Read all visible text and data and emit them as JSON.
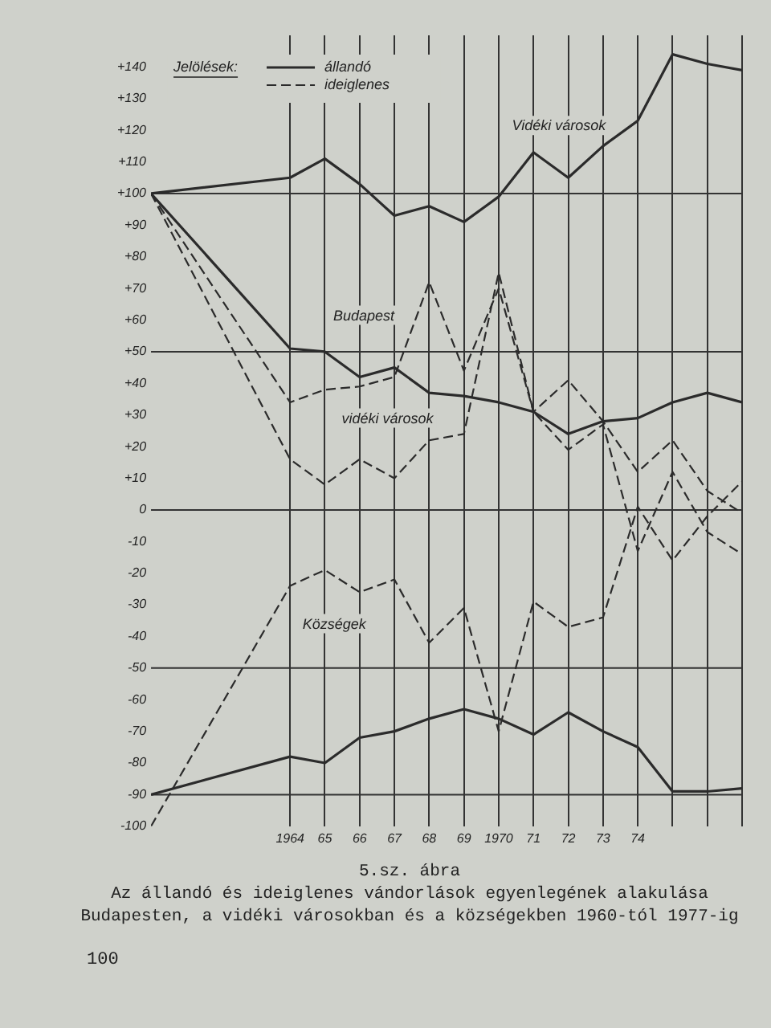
{
  "chart_data": {
    "type": "line",
    "title": "5.sz. ábra",
    "subtitle": "Az állandó és ideiglenes vándorlások egyenlegének alakulása Budapesten, a vidéki városokban és a községekben 1960-tól 1977-ig",
    "legend_title": "Jelölések:",
    "legend": "top left",
    "grid": "x",
    "marker": "none",
    "x": [
      1960,
      1964,
      1965,
      1966,
      1967,
      1968,
      1969,
      1970,
      1971,
      1972,
      1973,
      1974,
      1975,
      1976,
      1977
    ],
    "xlim": [
      1960,
      1977
    ],
    "xticks": [
      {
        "value": 1964,
        "label": "1964"
      },
      {
        "value": 1965,
        "label": "65"
      },
      {
        "value": 1966,
        "label": "66"
      },
      {
        "value": 1967,
        "label": "67"
      },
      {
        "value": 1968,
        "label": "68"
      },
      {
        "value": 1969,
        "label": "69"
      },
      {
        "value": 1970,
        "label": "1970"
      },
      {
        "value": 1971,
        "label": "71"
      },
      {
        "value": 1972,
        "label": "72"
      },
      {
        "value": 1973,
        "label": "73"
      },
      {
        "value": 1974,
        "label": "74"
      },
      {
        "value": 1975,
        "label": null
      },
      {
        "value": 1976,
        "label": null
      },
      {
        "value": 1977,
        "label": null
      }
    ],
    "ylim": [
      -100,
      150
    ],
    "yticks": [
      {
        "value": 140,
        "label": "+140"
      },
      {
        "value": 130,
        "label": "+130"
      },
      {
        "value": 120,
        "label": "+120"
      },
      {
        "value": 110,
        "label": "+110"
      },
      {
        "value": 100,
        "label": "+100"
      },
      {
        "value": 90,
        "label": "+90"
      },
      {
        "value": 80,
        "label": "+80"
      },
      {
        "value": 70,
        "label": "+70"
      },
      {
        "value": 60,
        "label": "+60"
      },
      {
        "value": 50,
        "label": "+50"
      },
      {
        "value": 40,
        "label": "+40"
      },
      {
        "value": 30,
        "label": "+30"
      },
      {
        "value": 20,
        "label": "+20"
      },
      {
        "value": 10,
        "label": "+10"
      },
      0,
      -10,
      -20,
      -30,
      -40,
      -50,
      -60,
      -70,
      -80,
      -90,
      -100
    ],
    "series": [
      {
        "name": "állandó",
        "color": "#2b2b2b",
        "line_style": "solid",
        "values": [
          100,
          51,
          50,
          42,
          45,
          37,
          36,
          34,
          31,
          24,
          28,
          29,
          34,
          37,
          34
        ]
      },
      {
        "name": "ideiglenes",
        "color": "#2b2b2b",
        "line_style": "dashed",
        "values": [
          100,
          34,
          38,
          39,
          42,
          72,
          44,
          70,
          31,
          41,
          28,
          12,
          22,
          6,
          -1
        ]
      },
      {
        "color": "#2b2b2b",
        "line_style": "solid",
        "values": [
          100,
          105,
          111,
          103,
          93,
          96,
          91,
          99,
          113,
          105,
          115,
          123,
          144,
          141,
          139
        ]
      },
      {
        "color": "#2b2b2b",
        "line_style": "dashed",
        "values": [
          100,
          16,
          8,
          16,
          10,
          22,
          24,
          75,
          31,
          19,
          27,
          -13,
          12,
          -7,
          -14
        ]
      },
      {
        "color": "#2b2b2b",
        "line_style": "dashed",
        "values": [
          -100,
          -24,
          -19,
          -26,
          -22,
          -42,
          -31,
          -70,
          -29,
          -37,
          -34,
          1,
          -16,
          -2,
          9
        ]
      },
      {
        "color": "#2b2b2b",
        "line_style": "solid",
        "values": [
          -90,
          -78,
          -80,
          -72,
          -70,
          -66,
          -63,
          -66,
          -71,
          -64,
          -70,
          -75,
          -89,
          -89,
          -88
        ]
      }
    ],
    "ref_lines": [
      {
        "axis": "y",
        "value": 100
      },
      {
        "axis": "y",
        "value": 50
      },
      {
        "axis": "y",
        "value": 0
      },
      {
        "axis": "y",
        "value": -50
      },
      {
        "axis": "y",
        "value": -90
      }
    ],
    "annotations": [
      "Vidéki városok",
      "Budapest",
      "vidéki városok",
      "Községek",
      "100"
    ]
  }
}
